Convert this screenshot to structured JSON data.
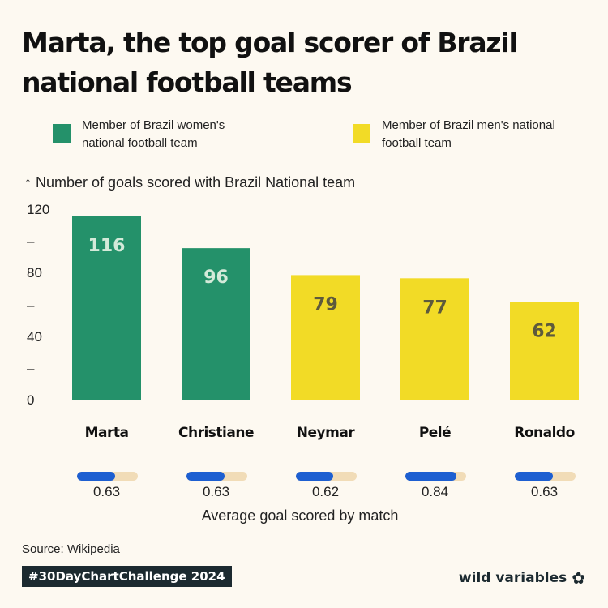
{
  "title": "Marta, the top goal scorer of Brazil national football teams",
  "legend": [
    {
      "label": "Member of Brazil women's national football team",
      "color": "#24916a"
    },
    {
      "label": "Member of Brazil men's national football team",
      "color": "#f2db26"
    }
  ],
  "colors": {
    "women": "#24916a",
    "men": "#f2db26",
    "label_on_women": "#d4ead9",
    "label_on_men": "#5e5a3c",
    "avg_fill": "#1d5fd1",
    "avg_track": "#f1dcb7"
  },
  "avg_caption": "Average goal scored by match",
  "source": "Source: Wikipedia",
  "hashtag": "#30DayChartChallenge 2024",
  "brand": {
    "name": "wild variables",
    "icon": "clover-icon"
  },
  "chart_data": {
    "type": "bar",
    "title": "Marta, the top goal scorer of Brazil national football teams",
    "ylabel": "↑ Number of goals scored with Brazil National team",
    "ylim": [
      0,
      120
    ],
    "yticks": [
      "0",
      "–",
      "40",
      "–",
      "80",
      "–",
      "120"
    ],
    "categories": [
      "Marta",
      "Christiane",
      "Neymar",
      "Pelé",
      "Ronaldo"
    ],
    "values": [
      116,
      96,
      79,
      77,
      62
    ],
    "team": [
      "women",
      "women",
      "men",
      "men",
      "men"
    ],
    "avg_goals_per_match": [
      0.63,
      0.63,
      0.62,
      0.84,
      0.63
    ],
    "avg_labels": [
      "0.63",
      "0.63",
      "0.62",
      "0.84",
      "0.63"
    ]
  }
}
